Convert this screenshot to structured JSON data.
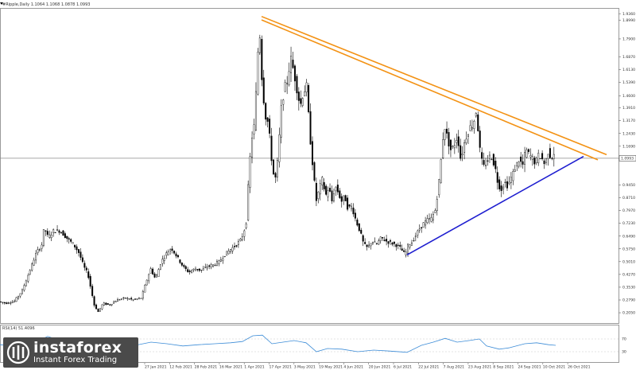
{
  "header": {
    "symbol_text": "#Ripple,Daily  1.1064 1.1068 1.0878 1.0993"
  },
  "rsi_panel": {
    "label": "RSI(14) 51.4096",
    "levels": [
      "70",
      "30"
    ]
  },
  "watermark": {
    "brand": "instaforex",
    "tagline": "Instant Forex Trading"
  },
  "colors": {
    "up": "#000000",
    "down": "#000000",
    "trendline_orange": "#f39214",
    "trendline_blue": "#1f1fd0",
    "rsi_line": "#3c8cd7",
    "current_price_line": "#8a8a8a"
  },
  "chart_data": {
    "type": "candlestick",
    "title": "#Ripple,Daily",
    "ylim": [
      0.15,
      1.96
    ],
    "current_price": "1.0993",
    "y_ticks": [
      "1.9360",
      "1.8990",
      "1.7900",
      "1.6870",
      "1.6130",
      "1.5390",
      "1.4600",
      "1.3910",
      "1.3170",
      "1.2430",
      "1.1690",
      "1.0950",
      "0.9450",
      "0.8710",
      "0.7970",
      "0.7230",
      "0.6490",
      "0.5750",
      "0.5010",
      "0.4270",
      "0.3530",
      "0.2790",
      "0.2050"
    ],
    "x_labels": [
      "27 Jan 2021",
      "12 Feb 2021",
      "28 Feb 2021",
      "16 Mar 2021",
      "1 Apr 2021",
      "17 Apr 2021",
      "3 May 2021",
      "19 May 2021",
      "4 Jun 2021",
      "20 Jun 2021",
      "6 Jul 2021",
      "22 Jul 2021",
      "7 Aug 2021",
      "23 Aug 2021",
      "8 Sep 2021",
      "24 Sep 2021",
      "10 Oct 2021",
      "26 Oct 2021"
    ],
    "price_path": [
      [
        0,
        0.27
      ],
      [
        10,
        0.26
      ],
      [
        20,
        0.27
      ],
      [
        30,
        0.33
      ],
      [
        40,
        0.45
      ],
      [
        48,
        0.55
      ],
      [
        55,
        0.6
      ],
      [
        58,
        0.7
      ],
      [
        63,
        0.64
      ],
      [
        70,
        0.68
      ],
      [
        78,
        0.68
      ],
      [
        88,
        0.63
      ],
      [
        95,
        0.6
      ],
      [
        102,
        0.55
      ],
      [
        108,
        0.47
      ],
      [
        113,
        0.43
      ],
      [
        117,
        0.34
      ],
      [
        121,
        0.25
      ],
      [
        126,
        0.21
      ],
      [
        132,
        0.26
      ],
      [
        140,
        0.25
      ],
      [
        150,
        0.28
      ],
      [
        160,
        0.29
      ],
      [
        170,
        0.28
      ],
      [
        180,
        0.29
      ],
      [
        186,
        0.38
      ],
      [
        192,
        0.46
      ],
      [
        198,
        0.4
      ],
      [
        205,
        0.5
      ],
      [
        212,
        0.55
      ],
      [
        218,
        0.58
      ],
      [
        225,
        0.53
      ],
      [
        233,
        0.47
      ],
      [
        240,
        0.44
      ],
      [
        248,
        0.46
      ],
      [
        255,
        0.45
      ],
      [
        262,
        0.47
      ],
      [
        270,
        0.48
      ],
      [
        278,
        0.5
      ],
      [
        285,
        0.54
      ],
      [
        292,
        0.57
      ],
      [
        300,
        0.6
      ],
      [
        306,
        0.63
      ],
      [
        312,
        0.72
      ],
      [
        316,
        1.05
      ],
      [
        320,
        1.25
      ],
      [
        323,
        1.3
      ],
      [
        326,
        1.67
      ],
      [
        329,
        1.84
      ],
      [
        332,
        1.55
      ],
      [
        336,
        1.35
      ],
      [
        340,
        1.3
      ],
      [
        344,
        1.1
      ],
      [
        348,
        0.95
      ],
      [
        352,
        1.1
      ],
      [
        356,
        1.38
      ],
      [
        360,
        1.5
      ],
      [
        364,
        1.55
      ],
      [
        368,
        1.68
      ],
      [
        372,
        1.6
      ],
      [
        376,
        1.5
      ],
      [
        380,
        1.4
      ],
      [
        384,
        1.48
      ],
      [
        388,
        1.52
      ],
      [
        392,
        1.25
      ],
      [
        396,
        1.05
      ],
      [
        400,
        0.85
      ],
      [
        404,
        0.92
      ],
      [
        408,
        0.98
      ],
      [
        412,
        0.88
      ],
      [
        416,
        0.93
      ],
      [
        420,
        0.85
      ],
      [
        424,
        0.94
      ],
      [
        428,
        0.9
      ],
      [
        432,
        0.85
      ],
      [
        436,
        0.88
      ],
      [
        440,
        0.81
      ],
      [
        445,
        0.82
      ],
      [
        450,
        0.74
      ],
      [
        455,
        0.68
      ],
      [
        460,
        0.6
      ],
      [
        465,
        0.58
      ],
      [
        470,
        0.62
      ],
      [
        476,
        0.6
      ],
      [
        482,
        0.64
      ],
      [
        488,
        0.62
      ],
      [
        494,
        0.61
      ],
      [
        500,
        0.6
      ],
      [
        506,
        0.58
      ],
      [
        512,
        0.54
      ],
      [
        516,
        0.6
      ],
      [
        520,
        0.61
      ],
      [
        525,
        0.65
      ],
      [
        530,
        0.69
      ],
      [
        535,
        0.72
      ],
      [
        540,
        0.74
      ],
      [
        545,
        0.75
      ],
      [
        550,
        0.8
      ],
      [
        553,
        0.9
      ],
      [
        556,
        1.02
      ],
      [
        559,
        1.2
      ],
      [
        562,
        1.28
      ],
      [
        566,
        1.2
      ],
      [
        570,
        1.14
      ],
      [
        574,
        1.18
      ],
      [
        578,
        1.23
      ],
      [
        582,
        1.09
      ],
      [
        586,
        1.18
      ],
      [
        590,
        1.24
      ],
      [
        594,
        1.28
      ],
      [
        598,
        1.3
      ],
      [
        601,
        1.38
      ],
      [
        604,
        1.26
      ],
      [
        607,
        1.1
      ],
      [
        611,
        1.05
      ],
      [
        615,
        1.08
      ],
      [
        620,
        1.12
      ],
      [
        625,
        1.05
      ],
      [
        629,
        0.95
      ],
      [
        633,
        0.92
      ],
      [
        637,
        0.96
      ],
      [
        641,
        0.94
      ],
      [
        645,
        0.98
      ],
      [
        650,
        1.04
      ],
      [
        655,
        1.09
      ],
      [
        660,
        1.06
      ],
      [
        664,
        1.15
      ],
      [
        668,
        1.12
      ],
      [
        672,
        1.1
      ],
      [
        676,
        1.07
      ],
      [
        680,
        1.12
      ],
      [
        684,
        1.1
      ],
      [
        688,
        1.06
      ],
      [
        692,
        1.14
      ],
      [
        696,
        1.1
      ],
      [
        699,
        1.13
      ]
    ],
    "trendlines": [
      {
        "name": "upper resistance 1",
        "color": "orange",
        "from": [
          329,
          1.92
        ],
        "to": [
          763,
          1.12
        ]
      },
      {
        "name": "upper resistance 2",
        "color": "orange",
        "from": [
          329,
          1.9
        ],
        "to": [
          752,
          1.09
        ]
      },
      {
        "name": "rising support",
        "color": "blue",
        "from": [
          512,
          0.54
        ],
        "to": [
          734,
          1.11
        ]
      }
    ],
    "rsi": {
      "ylim": [
        0,
        100
      ],
      "levels": [
        70,
        30
      ],
      "path": [
        [
          0,
          52
        ],
        [
          20,
          48
        ],
        [
          40,
          55
        ],
        [
          60,
          78
        ],
        [
          80,
          62
        ],
        [
          100,
          45
        ],
        [
          118,
          28
        ],
        [
          130,
          35
        ],
        [
          150,
          42
        ],
        [
          170,
          50
        ],
        [
          190,
          60
        ],
        [
          210,
          55
        ],
        [
          230,
          48
        ],
        [
          250,
          52
        ],
        [
          270,
          55
        ],
        [
          290,
          58
        ],
        [
          305,
          62
        ],
        [
          318,
          80
        ],
        [
          330,
          82
        ],
        [
          342,
          55
        ],
        [
          356,
          60
        ],
        [
          370,
          65
        ],
        [
          385,
          58
        ],
        [
          398,
          30
        ],
        [
          412,
          40
        ],
        [
          430,
          38
        ],
        [
          450,
          30
        ],
        [
          470,
          35
        ],
        [
          490,
          32
        ],
        [
          512,
          28
        ],
        [
          530,
          50
        ],
        [
          545,
          60
        ],
        [
          560,
          72
        ],
        [
          575,
          60
        ],
        [
          590,
          65
        ],
        [
          603,
          70
        ],
        [
          612,
          48
        ],
        [
          628,
          38
        ],
        [
          640,
          42
        ],
        [
          660,
          55
        ],
        [
          675,
          58
        ],
        [
          690,
          52
        ],
        [
          699,
          50
        ]
      ]
    }
  }
}
